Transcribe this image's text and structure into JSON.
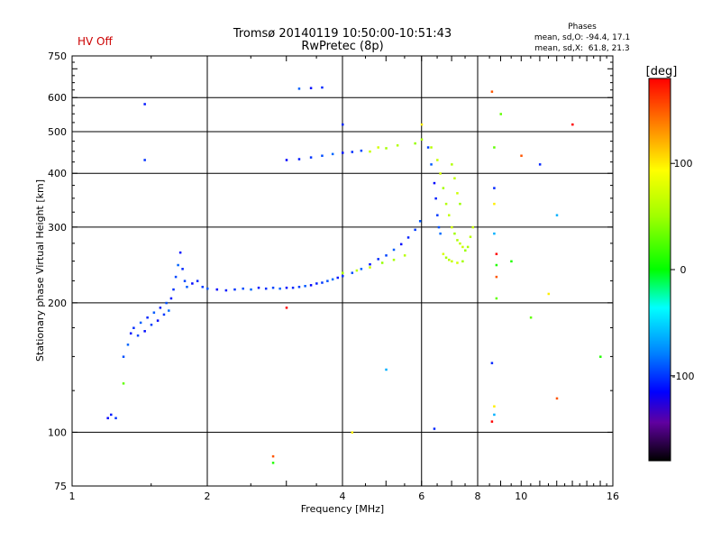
{
  "header": {
    "status": "HV Off",
    "title_line1": "Tromsø 20140119 10:50:00-10:51:43",
    "title_line2": "RwPretec (8p)",
    "stats_heading": "Phases",
    "stats_line1": "mean, sd,O: -94.4, 17.1",
    "stats_line2": "mean, sd,X:  61.8, 21.3"
  },
  "colors": {
    "status": "#cc0000",
    "frame": "#000000",
    "grid": "#000000"
  },
  "chart_data": {
    "type": "scatter",
    "xlabel": "Frequency [MHz]",
    "ylabel": "Stationary phase Virtual Height [km]",
    "xscale": "log",
    "yscale": "log",
    "xlim": [
      1,
      16
    ],
    "ylim": [
      75,
      750
    ],
    "x_ticks": [
      "1",
      "2",
      "4",
      "6",
      "8",
      "10",
      "16"
    ],
    "y_ticks": [
      "75",
      "100",
      "200",
      "300",
      "400",
      "500",
      "600",
      "750"
    ],
    "x_major_lines": [
      2,
      4,
      6,
      8
    ],
    "y_major_lines": [
      100,
      200,
      300,
      400,
      500,
      600
    ],
    "colorbar": {
      "label": "[deg]",
      "range": [
        -180,
        180
      ],
      "ticks": [
        "100",
        "0",
        "-100"
      ]
    },
    "series": [
      {
        "description": "O-mode trace (phase ~ -100 deg, blue)",
        "phase": -95,
        "points": [
          [
            1.2,
            108
          ],
          [
            1.22,
            110
          ],
          [
            1.25,
            108
          ],
          [
            1.3,
            150
          ],
          [
            1.33,
            160
          ],
          [
            1.35,
            170
          ],
          [
            1.37,
            175
          ],
          [
            1.4,
            168
          ],
          [
            1.42,
            180
          ],
          [
            1.45,
            172
          ],
          [
            1.47,
            185
          ],
          [
            1.5,
            178
          ],
          [
            1.52,
            190
          ],
          [
            1.55,
            182
          ],
          [
            1.57,
            195
          ],
          [
            1.6,
            188
          ],
          [
            1.62,
            200
          ],
          [
            1.64,
            192
          ],
          [
            1.66,
            205
          ],
          [
            1.68,
            215
          ],
          [
            1.7,
            230
          ],
          [
            1.72,
            245
          ],
          [
            1.74,
            262
          ],
          [
            1.76,
            240
          ],
          [
            1.78,
            225
          ],
          [
            1.8,
            218
          ],
          [
            1.85,
            222
          ],
          [
            1.9,
            225
          ],
          [
            1.95,
            218
          ],
          [
            2.0,
            216
          ],
          [
            2.1,
            215
          ],
          [
            2.2,
            214
          ],
          [
            2.3,
            215
          ],
          [
            2.4,
            216
          ],
          [
            2.5,
            215
          ],
          [
            2.6,
            217
          ],
          [
            2.7,
            216
          ],
          [
            2.8,
            217
          ],
          [
            2.9,
            216
          ],
          [
            3.0,
            217
          ],
          [
            3.1,
            217
          ],
          [
            3.2,
            218
          ],
          [
            3.3,
            219
          ],
          [
            3.4,
            220
          ],
          [
            3.5,
            222
          ],
          [
            3.6,
            223
          ],
          [
            3.7,
            225
          ],
          [
            3.8,
            227
          ],
          [
            3.9,
            229
          ],
          [
            4.0,
            231
          ],
          [
            4.2,
            235
          ],
          [
            4.4,
            240
          ],
          [
            4.6,
            246
          ],
          [
            4.8,
            253
          ],
          [
            5.0,
            258
          ],
          [
            5.2,
            266
          ],
          [
            5.4,
            274
          ],
          [
            5.6,
            284
          ],
          [
            5.8,
            296
          ],
          [
            5.95,
            310
          ],
          [
            3.0,
            430
          ],
          [
            3.2,
            432
          ],
          [
            3.4,
            436
          ],
          [
            3.6,
            440
          ],
          [
            3.8,
            444
          ],
          [
            4.0,
            447
          ],
          [
            4.2,
            449
          ],
          [
            4.4,
            452
          ],
          [
            3.2,
            630
          ],
          [
            3.4,
            632
          ],
          [
            3.6,
            634
          ],
          [
            6.2,
            460
          ],
          [
            6.3,
            420
          ],
          [
            6.4,
            380
          ],
          [
            6.45,
            350
          ],
          [
            6.5,
            320
          ],
          [
            6.55,
            300
          ],
          [
            6.6,
            290
          ],
          [
            1.45,
            580
          ],
          [
            1.45,
            430
          ]
        ]
      },
      {
        "description": "X-mode trace (phase ~ +60..+100 deg, green/yellow)",
        "phase": 62,
        "points": [
          [
            5.8,
            470
          ],
          [
            6.0,
            480
          ],
          [
            6.3,
            460
          ],
          [
            6.5,
            430
          ],
          [
            6.6,
            400
          ],
          [
            6.7,
            370
          ],
          [
            6.8,
            340
          ],
          [
            6.9,
            320
          ],
          [
            7.0,
            300
          ],
          [
            7.1,
            290
          ],
          [
            7.2,
            280
          ],
          [
            7.3,
            275
          ],
          [
            7.4,
            270
          ],
          [
            7.5,
            265
          ],
          [
            7.6,
            270
          ],
          [
            7.7,
            285
          ],
          [
            7.8,
            300
          ],
          [
            6.7,
            260
          ],
          [
            6.8,
            255
          ],
          [
            6.9,
            252
          ],
          [
            7.0,
            250
          ],
          [
            7.2,
            248
          ],
          [
            7.4,
            250
          ],
          [
            7.0,
            420
          ],
          [
            7.1,
            390
          ],
          [
            7.2,
            360
          ],
          [
            7.3,
            340
          ],
          [
            4.0,
            235
          ],
          [
            4.3,
            238
          ],
          [
            4.6,
            242
          ],
          [
            4.9,
            248
          ],
          [
            5.2,
            252
          ],
          [
            5.5,
            258
          ],
          [
            4.6,
            450
          ],
          [
            4.8,
            460
          ],
          [
            5.0,
            458
          ],
          [
            5.3,
            465
          ]
        ]
      },
      {
        "description": "Scattered outliers (mixed phases)",
        "phase": 150,
        "points": [
          [
            8.6,
            620
          ],
          [
            8.7,
            460
          ],
          [
            8.7,
            370
          ],
          [
            8.7,
            340
          ],
          [
            8.7,
            290
          ],
          [
            8.8,
            260
          ],
          [
            8.8,
            245
          ],
          [
            8.8,
            230
          ],
          [
            8.8,
            205
          ],
          [
            8.6,
            145
          ],
          [
            8.7,
            115
          ],
          [
            8.7,
            110
          ],
          [
            8.6,
            106
          ],
          [
            9.5,
            250
          ],
          [
            10.0,
            440
          ],
          [
            10.5,
            185
          ],
          [
            11.0,
            420
          ],
          [
            11.5,
            210
          ],
          [
            12.0,
            320
          ],
          [
            13.0,
            520
          ],
          [
            15.0,
            150
          ],
          [
            12.0,
            120
          ],
          [
            9.0,
            550
          ],
          [
            4.0,
            520
          ],
          [
            4.2,
            100
          ],
          [
            5.0,
            140
          ],
          [
            3.0,
            195
          ],
          [
            2.8,
            85
          ],
          [
            2.8,
            88
          ],
          [
            1.3,
            130
          ],
          [
            6.4,
            102
          ],
          [
            6.0,
            520
          ]
        ]
      }
    ]
  }
}
